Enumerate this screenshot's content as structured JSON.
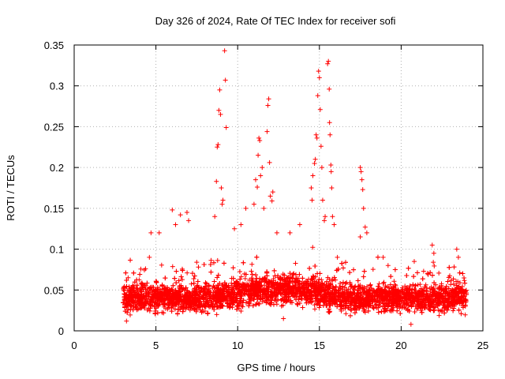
{
  "chart_data": {
    "type": "scatter",
    "title": "Day 326 of 2024, Rate Of TEC Index for receiver sofi",
    "xlabel": "GPS time / hours",
    "ylabel": "ROTI / TECUs",
    "xlim": [
      0,
      25
    ],
    "ylim": [
      0,
      0.35
    ],
    "xticks": [
      0,
      5,
      10,
      15,
      20,
      25
    ],
    "yticks": [
      0,
      0.05,
      0.1,
      0.15,
      0.2,
      0.25,
      0.3,
      0.35
    ],
    "xtick_labels": [
      "0",
      "5",
      "10",
      "15",
      "20",
      "25"
    ],
    "ytick_labels": [
      "0",
      "0.05",
      "0.1",
      "0.15",
      "0.2",
      "0.25",
      "0.3",
      "0.35"
    ],
    "grid": true,
    "marker": "+",
    "color": "#ff0000",
    "series": [
      {
        "name": "ROTI",
        "points": [
          [
            8.7,
            0.183
          ],
          [
            8.75,
            0.225
          ],
          [
            8.8,
            0.228
          ],
          [
            8.85,
            0.27
          ],
          [
            8.9,
            0.295
          ],
          [
            8.95,
            0.265
          ],
          [
            9.05,
            0.155
          ],
          [
            9.2,
            0.343
          ],
          [
            9.25,
            0.307
          ],
          [
            9.3,
            0.249
          ],
          [
            9.0,
            0.175
          ],
          [
            8.6,
            0.14
          ],
          [
            9.1,
            0.16
          ],
          [
            10.5,
            0.15
          ],
          [
            11.0,
            0.155
          ],
          [
            11.1,
            0.185
          ],
          [
            11.2,
            0.176
          ],
          [
            11.25,
            0.215
          ],
          [
            11.3,
            0.236
          ],
          [
            11.35,
            0.233
          ],
          [
            11.4,
            0.19
          ],
          [
            11.5,
            0.2
          ],
          [
            11.6,
            0.15
          ],
          [
            11.8,
            0.244
          ],
          [
            11.85,
            0.276
          ],
          [
            11.9,
            0.284
          ],
          [
            11.95,
            0.206
          ],
          [
            12.0,
            0.165
          ],
          [
            12.1,
            0.159
          ],
          [
            12.15,
            0.17
          ],
          [
            6.0,
            0.148
          ],
          [
            6.2,
            0.13
          ],
          [
            6.5,
            0.142
          ],
          [
            6.9,
            0.145
          ],
          [
            7.0,
            0.135
          ],
          [
            4.7,
            0.12
          ],
          [
            5.2,
            0.12
          ],
          [
            13.8,
            0.13
          ],
          [
            14.5,
            0.175
          ],
          [
            14.55,
            0.16
          ],
          [
            14.6,
            0.19
          ],
          [
            14.7,
            0.205
          ],
          [
            14.75,
            0.21
          ],
          [
            14.8,
            0.24
          ],
          [
            14.85,
            0.236
          ],
          [
            14.9,
            0.288
          ],
          [
            14.95,
            0.318
          ],
          [
            15.0,
            0.31
          ],
          [
            15.05,
            0.271
          ],
          [
            15.1,
            0.226
          ],
          [
            15.15,
            0.2
          ],
          [
            15.2,
            0.16
          ],
          [
            15.3,
            0.135
          ],
          [
            15.35,
            0.14
          ],
          [
            15.5,
            0.327
          ],
          [
            15.55,
            0.33
          ],
          [
            15.6,
            0.296
          ],
          [
            15.62,
            0.255
          ],
          [
            15.65,
            0.24
          ],
          [
            15.7,
            0.203
          ],
          [
            15.72,
            0.195
          ],
          [
            15.75,
            0.175
          ],
          [
            15.8,
            0.14
          ],
          [
            15.9,
            0.13
          ],
          [
            17.5,
            0.2
          ],
          [
            17.55,
            0.195
          ],
          [
            17.6,
            0.185
          ],
          [
            17.65,
            0.173
          ],
          [
            17.7,
            0.15
          ],
          [
            17.8,
            0.127
          ],
          [
            17.5,
            0.115
          ],
          [
            17.9,
            0.12
          ],
          [
            18.9,
            0.09
          ],
          [
            21.9,
            0.105
          ],
          [
            22.0,
            0.095
          ],
          [
            23.4,
            0.1
          ],
          [
            23.5,
            0.09
          ],
          [
            4.6,
            0.09
          ],
          [
            3.3,
            0.065
          ],
          [
            10.2,
            0.13
          ],
          [
            9.8,
            0.125
          ],
          [
            12.4,
            0.12
          ],
          [
            13.2,
            0.12
          ],
          [
            16.1,
            0.09
          ],
          [
            19.2,
            0.08
          ],
          [
            20.8,
            0.085
          ],
          [
            3.2,
            0.012
          ],
          [
            12.8,
            0.015
          ],
          [
            20.6,
            0.008
          ]
        ]
      }
    ],
    "bulk": {
      "x_range": [
        3.0,
        24.0
      ],
      "typical_y": 0.04,
      "typical_spread": 0.025,
      "dense_band_y": [
        0.02,
        0.075
      ]
    }
  }
}
